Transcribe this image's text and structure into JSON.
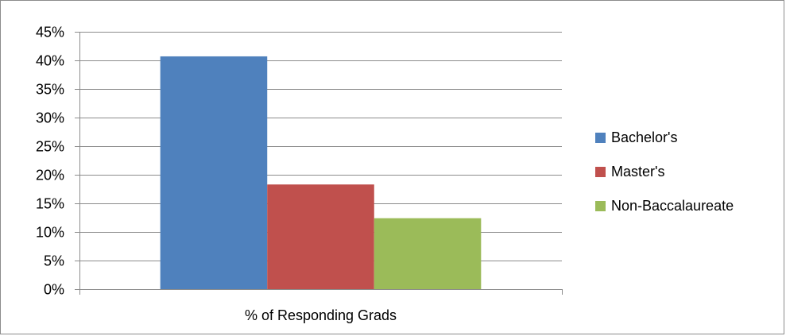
{
  "chart_data": {
    "type": "bar",
    "categories": [
      "% of Responding Grads"
    ],
    "series": [
      {
        "name": "Bachelor's",
        "values": [
          0.407
        ],
        "color": "#4F81BD"
      },
      {
        "name": "Master's",
        "values": [
          0.183
        ],
        "color": "#C0504D"
      },
      {
        "name": "Non-Baccalaureate",
        "values": [
          0.124
        ],
        "color": "#9BBB59"
      }
    ],
    "yticks": [
      "0%",
      "5%",
      "10%",
      "15%",
      "20%",
      "25%",
      "30%",
      "35%",
      "40%",
      "45%"
    ],
    "ylim": [
      0,
      0.45
    ],
    "grid": true,
    "legend_position": "right",
    "title": "",
    "xlabel": "",
    "ylabel": ""
  }
}
